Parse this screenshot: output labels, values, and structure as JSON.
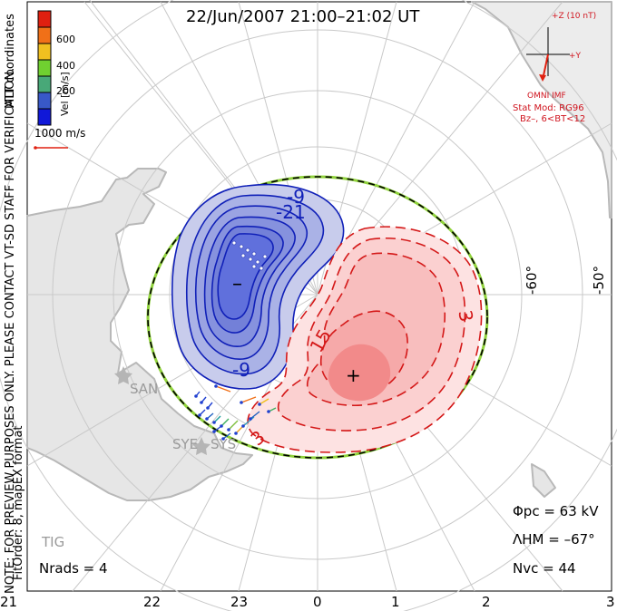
{
  "title": "22/Jun/2007 21:00–21:02 UT",
  "colorbar": {
    "label": "Vel [m/s]",
    "ticks": [
      "600",
      "400",
      "200"
    ],
    "colors": [
      "#e02010",
      "#f07018",
      "#f0c020",
      "#70d030",
      "#48a878",
      "#3858c8",
      "#1018d8"
    ]
  },
  "side_text": {
    "mlt_coordinates": "MLT coordinates",
    "note": "NOTE: FOR PREVIEW PURPOSES ONLY. PLEASE CONTACT VT-SD STAFF FOR VERIFICATION.",
    "fitorder": "FitOrder: 8, mapEX format"
  },
  "scale_vector": "1000 m/s",
  "imf": {
    "z_label": "+Z (10 nT)",
    "y_label": "+Y",
    "source": "OMNI IMF",
    "stat_mod": "Stat Mod: RG96",
    "condition": "Bz–, 6<BT<12"
  },
  "latitude_labels": [
    "-60°",
    "-50°"
  ],
  "mlt_labels": [
    "21",
    "22",
    "23",
    "0",
    "1",
    "2",
    "3"
  ],
  "stations": [
    "SAN",
    "SYE",
    "SYS",
    "TIG"
  ],
  "contour_labels": {
    "neg_outer": "-9",
    "neg_inner": "-21",
    "neg_lower": "-9",
    "pos_outer": "3",
    "pos_inner": "15",
    "pos_low": "3"
  },
  "extrema": {
    "min": "–",
    "max": "+"
  },
  "stats": {
    "phi_pc": "Φpc = 63 kV",
    "lambda_hm": "ΛHM = –67°",
    "n_vc": "Nvc = 44",
    "n_rads": "Nrads = 4"
  },
  "colors": {
    "negative": "#1020b8",
    "positive": "#d41818",
    "boundary_green": "#8fd23a",
    "land": "#c8c8c8"
  }
}
